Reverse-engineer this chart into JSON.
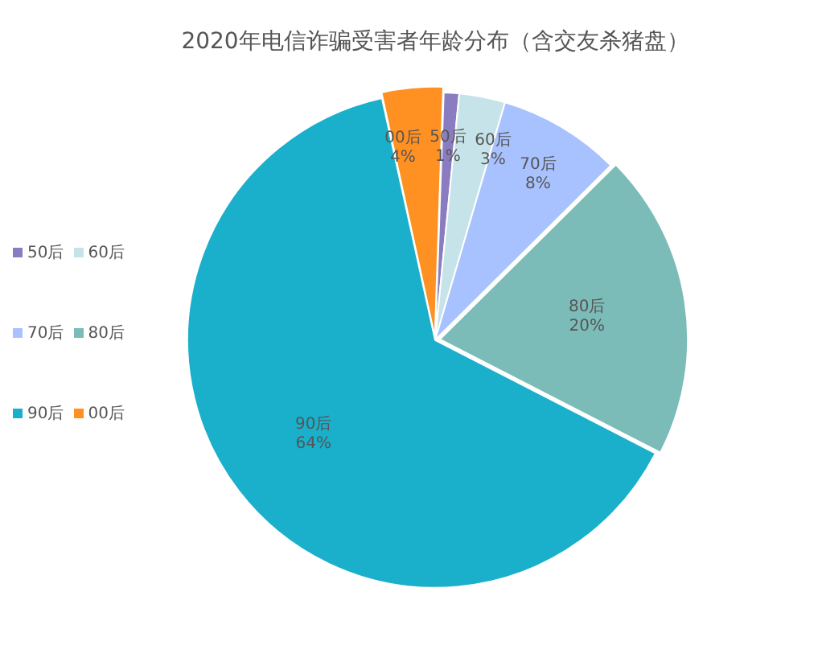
{
  "chart_data": {
    "type": "pie",
    "title": "2020年电信诈骗受害者年龄分布（含交友杀猪盘）",
    "categories": [
      "50后",
      "60后",
      "70后",
      "80后",
      "90后",
      "00后"
    ],
    "values": [
      1,
      3,
      8,
      20,
      64,
      4
    ],
    "colors": [
      "#8a7cc0",
      "#c5e3e8",
      "#a8c2ff",
      "#7bbcb8",
      "#1aafcb",
      "#ff9022"
    ],
    "value_labels": [
      "1%",
      "3%",
      "8%",
      "20%",
      "64%",
      "4%"
    ],
    "legend": "left"
  }
}
